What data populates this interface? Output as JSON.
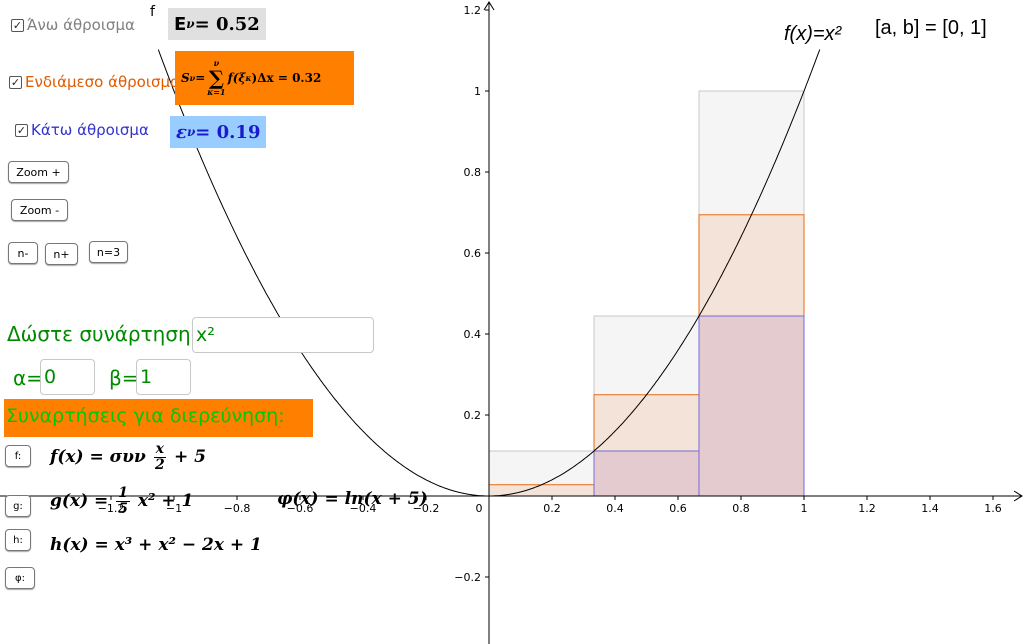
{
  "checkboxes": {
    "upper": {
      "label": "Άνω άθροισμα",
      "color": "#808080",
      "checked": "✓"
    },
    "middle": {
      "label": "Ενδιάμεσο άθροισμα",
      "color": "#e05a00",
      "checked": "✓"
    },
    "lower": {
      "label": "Κάτω άθροισμα",
      "color": "#3333cc",
      "checked": "✓"
    }
  },
  "sums": {
    "upper": {
      "symbol": "E",
      "sub": "ν",
      "eq": " = 0.52",
      "bg": "#e0e0e0"
    },
    "middle": {
      "S": "S",
      "sub": "ν",
      "eq": " = ",
      "sum_top": "ν",
      "sum_bottom": "κ=1",
      "body": "f(ξ",
      "body_sub": "κ",
      "body_end": ")Δx = 0.32",
      "bg": "#ff7f00"
    },
    "lower": {
      "symbol": "ε",
      "sub": "ν",
      "eq": " = 0.19",
      "bg": "#99ccff"
    }
  },
  "buttons": {
    "zoom_in": "Zoom +",
    "zoom_out": "Zoom -",
    "n_minus": "n-",
    "n_plus": "n+",
    "n3": "n=3",
    "f": "f:",
    "g": "g:",
    "h": "h:",
    "phi": "φ:"
  },
  "function_input": {
    "label": "Δώστε συνάρτηση:",
    "value": "x²"
  },
  "alpha": {
    "label": "α=",
    "value": "0"
  },
  "beta": {
    "label": "β=",
    "value": "1"
  },
  "functions_header": {
    "text": "Συναρτήσεις για διερεύνηση:",
    "bg": "#ff7f00",
    "color": "#00c800"
  },
  "functions": {
    "f": {
      "lhs": "f(x) = συν",
      "num": "x",
      "den": "2",
      "rhs": "+ 5"
    },
    "g": {
      "lhs": "g(x) = ",
      "num": "1",
      "den": "5",
      "rhs": "x² + 1"
    },
    "h": {
      "text": "h(x) = x³ + x² − 2x + 1"
    },
    "phi": {
      "text": "φ(x) = ln(x + 5)"
    }
  },
  "graph": {
    "curve_name": "f",
    "curve_label": "f(x)=x²",
    "interval_label": "[a, b] = [0, 1]",
    "x_ticks": [
      "−1.2",
      "−1",
      "−0.8",
      "−0.6",
      "−0.4",
      "−0.2",
      "0",
      "0.2",
      "0.4",
      "0.6",
      "0.8",
      "1",
      "1.2",
      "1.4",
      "1.6"
    ],
    "y_ticks": [
      "1.2",
      "1",
      "0.8",
      "0.6",
      "0.4",
      "0.2",
      "−0.2"
    ],
    "xmin": -1.53,
    "xmax": 1.67,
    "ymin": -0.36,
    "ymax": 1.22,
    "a": 0,
    "b": 1,
    "n": 3,
    "upper_heights": [
      0.1111,
      0.4444,
      1.0
    ],
    "middle_heights": [
      0.0278,
      0.25,
      0.6944
    ],
    "lower_heights": [
      0.0,
      0.1111,
      0.4444
    ],
    "colors": {
      "upper": "#808080",
      "middle": "#e05a00",
      "lower": "#6060d0",
      "curve": "#000000"
    }
  }
}
